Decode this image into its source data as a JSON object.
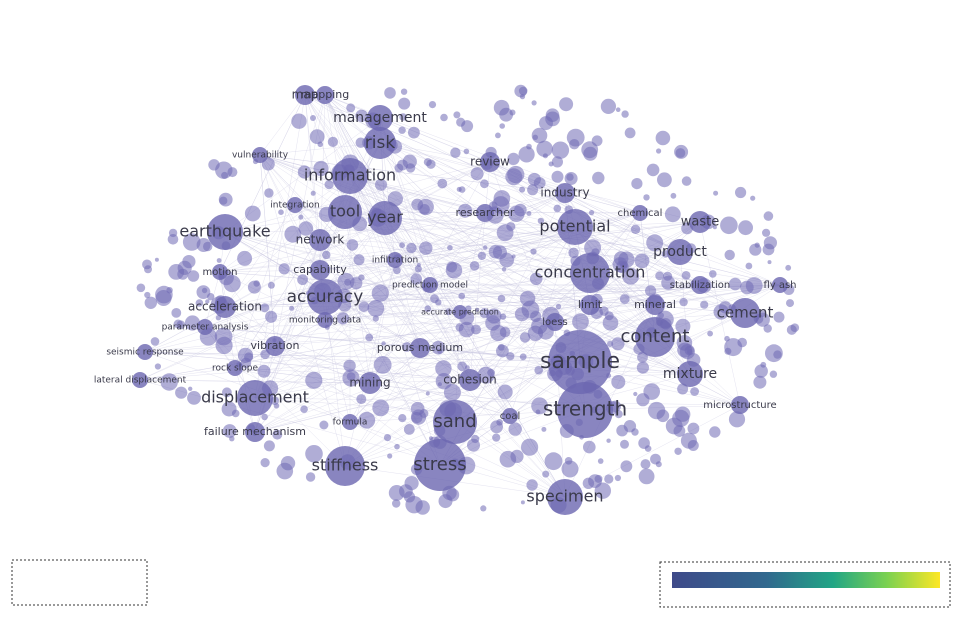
{
  "nodes": [
    {
      "label": "mapping"
    },
    {
      "label": "map"
    },
    {
      "label": "management"
    },
    {
      "label": "risk"
    },
    {
      "label": "vulnerability"
    },
    {
      "label": "information"
    },
    {
      "label": "review"
    },
    {
      "label": "industry"
    },
    {
      "label": "tool"
    },
    {
      "label": "year"
    },
    {
      "label": "integration"
    },
    {
      "label": "researcher"
    },
    {
      "label": "potential"
    },
    {
      "label": "chemical"
    },
    {
      "label": "waste"
    },
    {
      "label": "earthquake"
    },
    {
      "label": "network"
    },
    {
      "label": "product"
    },
    {
      "label": "infiltration"
    },
    {
      "label": "capability"
    },
    {
      "label": "concentration"
    },
    {
      "label": "motion"
    },
    {
      "label": "stabilization"
    },
    {
      "label": "fly ash"
    },
    {
      "label": "mineral"
    },
    {
      "label": "accuracy"
    },
    {
      "label": "prediction model"
    },
    {
      "label": "acceleration"
    },
    {
      "label": "limit"
    },
    {
      "label": "monitoring data"
    },
    {
      "label": "accurate prediction"
    },
    {
      "label": "loess"
    },
    {
      "label": "cement"
    },
    {
      "label": "content"
    },
    {
      "label": "parameter analysis"
    },
    {
      "label": "vibration"
    },
    {
      "label": "porous medium"
    },
    {
      "label": "seismic response"
    },
    {
      "label": "sample"
    },
    {
      "label": "mixture"
    },
    {
      "label": "rock slope"
    },
    {
      "label": "mining"
    },
    {
      "label": "cohesion"
    },
    {
      "label": "lateral displacement"
    },
    {
      "label": "displacement"
    },
    {
      "label": "strength"
    },
    {
      "label": "sand"
    },
    {
      "label": "coal"
    },
    {
      "label": "formula"
    },
    {
      "label": "failure mechanism"
    },
    {
      "label": "stiffness"
    },
    {
      "label": "stress"
    },
    {
      "label": "specimen"
    },
    {
      "label": "microstructure"
    }
  ]
}
